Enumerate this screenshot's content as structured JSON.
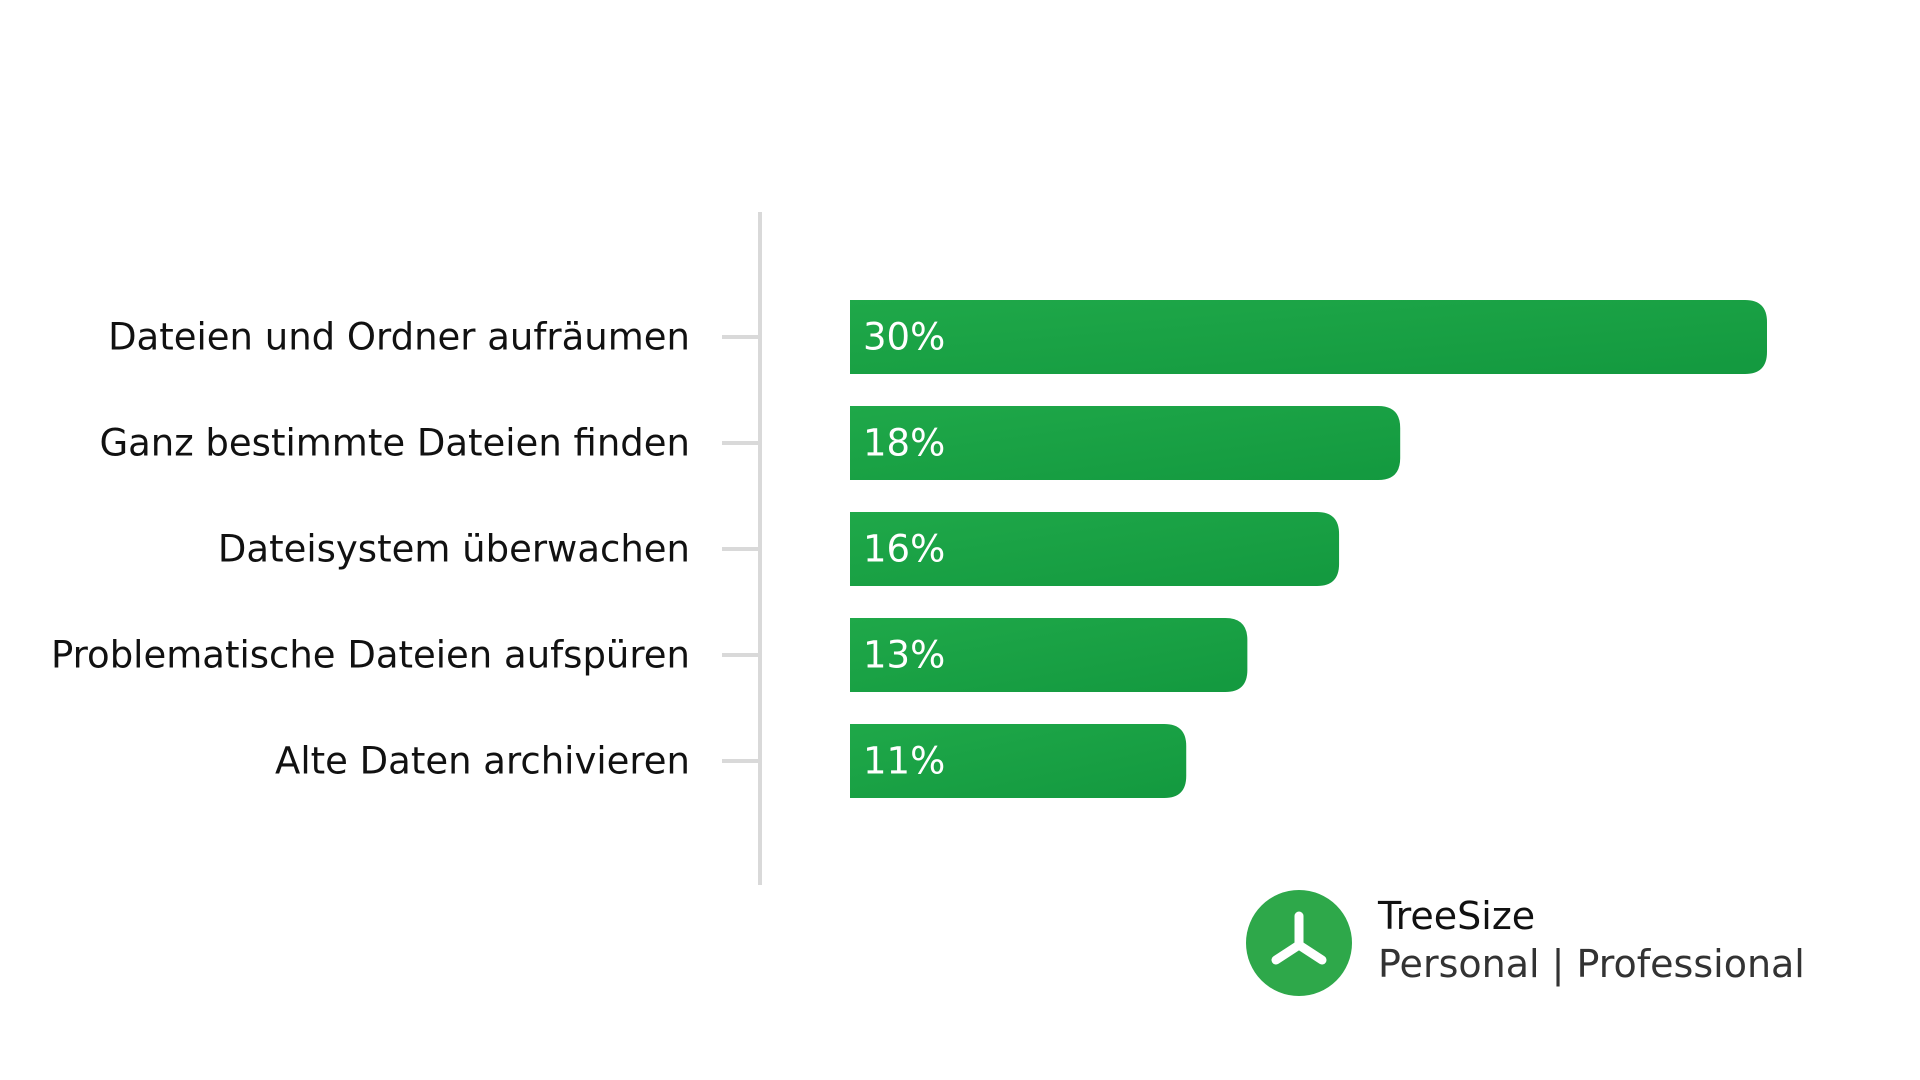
{
  "chart_data": {
    "type": "bar",
    "orientation": "horizontal",
    "categories": [
      "Dateien und Ordner aufräumen",
      "Ganz bestimmte Dateien finden",
      "Dateisystem überwachen",
      "Problematische Dateien aufspüren",
      "Alte Daten archivieren"
    ],
    "values": [
      30,
      18,
      16,
      13,
      11
    ],
    "value_labels": [
      "30%",
      "18%",
      "16%",
      "13%",
      "11%"
    ],
    "unit": "%",
    "xlim": [
      0,
      30
    ],
    "grid": false,
    "legend": "none",
    "bar_color": "#1aa34a"
  },
  "brand": {
    "product": "TreeSize",
    "editions": "Personal | Professional",
    "logo_icon": "treesize-logo-icon",
    "logo_color": "#2ea84a"
  }
}
